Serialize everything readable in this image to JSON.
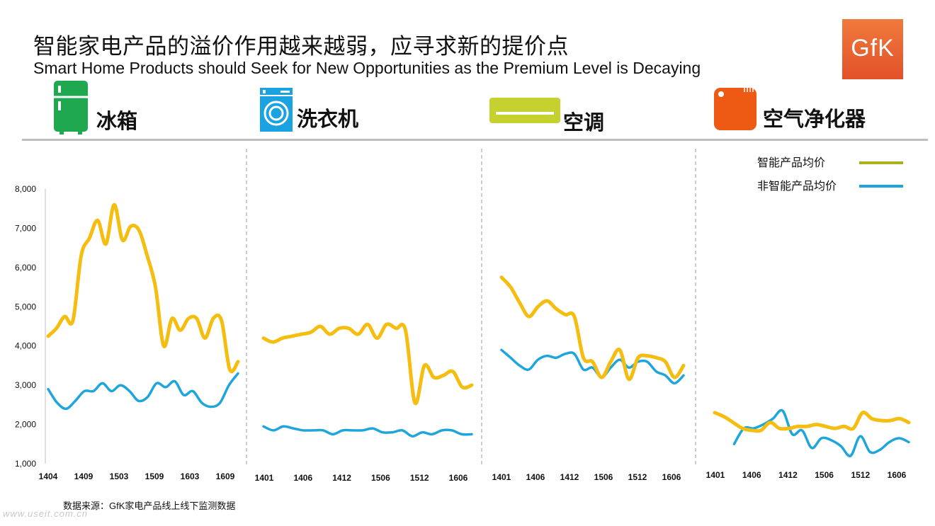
{
  "title_cn": "智能家电产品的溢价作用越来越弱，应寻求新的提价点",
  "title_en": "Smart Home Products should Seek for New Opportunities as the Premium Level is Decaying",
  "logo_text": "GfK",
  "categories": [
    {
      "label": "冰箱",
      "icon": "refrigerator-icon",
      "color": "#1fa84f"
    },
    {
      "label": "洗衣机",
      "icon": "washing-machine-icon",
      "color": "#1aa3e0"
    },
    {
      "label": "空调",
      "icon": "air-conditioner-icon",
      "color": "#c5d12f"
    },
    {
      "label": "空气净化器",
      "icon": "air-purifier-icon",
      "color": "#ee5a14"
    }
  ],
  "footer_source": "数据来源：GfK家电产品线上线下监测数据",
  "watermark": "www.useit.com.cn",
  "chart_data": {
    "type": "line",
    "ylim": [
      1000,
      8000
    ],
    "yticks": [
      "8,000",
      "7,000",
      "6,000",
      "5,000",
      "4,000",
      "3,000",
      "2,000",
      "1,000"
    ],
    "yvalues": [
      8000,
      7000,
      6000,
      5000,
      4000,
      3000,
      2000,
      1000
    ],
    "legend": [
      {
        "name": "智能产品均价",
        "color": "#f5bd0f",
        "legend_color": "#a9b21a"
      },
      {
        "name": "非智能产品均价",
        "color": "#1ea6dc",
        "legend_color": "#1ea6dc"
      }
    ],
    "panels": [
      {
        "category": "冰箱",
        "xlabels": [
          "1404",
          "1409",
          "1503",
          "1509",
          "1603",
          "1609"
        ],
        "series": [
          {
            "name": "智能产品均价",
            "values": [
              4250,
              4450,
              4750,
              4650,
              6300,
              6750,
              7200,
              6600,
              7600,
              6700,
              7050,
              6950,
              6300,
              5500,
              4000,
              4700,
              4400,
              4700,
              4700,
              4200,
              4700,
              4650,
              3400,
              3600
            ]
          },
          {
            "name": "非智能产品均价",
            "values": [
              2900,
              2550,
              2400,
              2600,
              2850,
              2850,
              3050,
              2850,
              3000,
              2850,
              2600,
              2700,
              3050,
              2950,
              3100,
              2750,
              2850,
              2550,
              2450,
              2550,
              3000,
              3300
            ]
          }
        ]
      },
      {
        "category": "洗衣机",
        "xlabels": [
          "1401",
          "1406",
          "1412",
          "1506",
          "1512",
          "1606"
        ],
        "series": [
          {
            "name": "智能产品均价",
            "values": [
              4200,
              4100,
              4200,
              4250,
              4300,
              4350,
              4500,
              4300,
              4450,
              4450,
              4300,
              4550,
              4200,
              4550,
              4450,
              4400,
              2550,
              3500,
              3200,
              3250,
              3350,
              2950,
              3000
            ]
          },
          {
            "name": "非智能产品均价",
            "values": [
              1950,
              1850,
              1950,
              1900,
              1850,
              1850,
              1850,
              1750,
              1850,
              1850,
              1850,
              1900,
              1800,
              1800,
              1850,
              1700,
              1800,
              1750,
              1850,
              1850,
              1750,
              1750
            ]
          }
        ]
      },
      {
        "category": "空调",
        "xlabels": [
          "1401",
          "1406",
          "1412",
          "1506",
          "1512",
          "1606"
        ],
        "series": [
          {
            "name": "智能产品均价",
            "values": [
              5750,
              5500,
              5100,
              4750,
              5000,
              5150,
              4950,
              4800,
              4750,
              3700,
              3600,
              3200,
              3600,
              3900,
              3150,
              3700,
              3750,
              3700,
              3600,
              3200,
              3500
            ]
          },
          {
            "name": "非智能产品均价",
            "values": [
              3900,
              3700,
              3500,
              3400,
              3650,
              3750,
              3700,
              3800,
              3800,
              3400,
              3450,
              3200,
              3450,
              3650,
              3450,
              3600,
              3600,
              3350,
              3250,
              3050,
              3250
            ]
          }
        ]
      },
      {
        "category": "空气净化器",
        "xlabels": [
          "1401",
          "1406",
          "1412",
          "1506",
          "1512",
          "1606"
        ],
        "series": [
          {
            "name": "智能产品均价",
            "values": [
              2300,
              2200,
              2050,
              1900,
              1850,
              1850,
              2050,
              1900,
              1900,
              1950,
              1950,
              2000,
              1950,
              1900,
              1950,
              1900,
              2300,
              2150,
              2100,
              2100,
              2150,
              2050
            ]
          },
          {
            "name": "非智能产品均价",
            "values": [
              null,
              null,
              1500,
              1900,
              1900,
              2000,
              2150,
              2350,
              1750,
              1850,
              1400,
              1650,
              1600,
              1450,
              1200,
              1700,
              1300,
              1350,
              1550,
              1650,
              1550
            ]
          }
        ]
      }
    ]
  }
}
